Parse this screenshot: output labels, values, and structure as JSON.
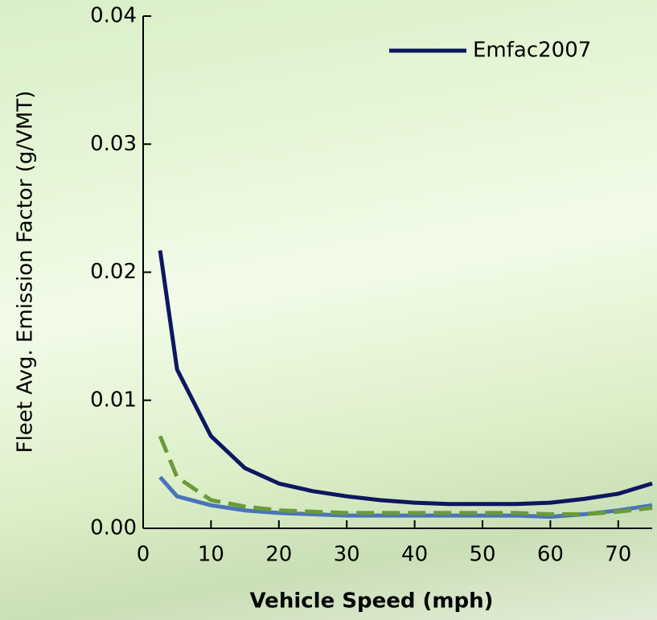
{
  "chart_data": {
    "type": "line",
    "x": [
      2.5,
      5,
      10,
      15,
      20,
      25,
      30,
      35,
      40,
      45,
      50,
      55,
      60,
      65,
      70,
      75
    ],
    "series": [
      {
        "name": "Emfac2007",
        "color": "#0d1760",
        "dash": false,
        "values": [
          0.0217,
          0.0124,
          0.0072,
          0.0047,
          0.0035,
          0.0029,
          0.0025,
          0.0022,
          0.002,
          0.0019,
          0.0019,
          0.0019,
          0.002,
          0.0023,
          0.0027,
          0.0035
        ]
      },
      {
        "color": "#4a74b8",
        "dash": false,
        "values": [
          0.004,
          0.0025,
          0.0018,
          0.0014,
          0.0012,
          0.0011,
          0.001,
          0.001,
          0.001,
          0.001,
          0.001,
          0.001,
          0.0009,
          0.0011,
          0.0014,
          0.0018
        ]
      },
      {
        "color": "#6a9a3a",
        "dash": true,
        "values": [
          0.0072,
          0.004,
          0.0022,
          0.0017,
          0.0014,
          0.0013,
          0.0012,
          0.0012,
          0.0012,
          0.0012,
          0.0012,
          0.0012,
          0.0011,
          0.0011,
          0.0013,
          0.0016
        ]
      }
    ],
    "xlim": [
      0,
      75
    ],
    "ylim": [
      0,
      0.04
    ],
    "xticks": [
      0,
      10,
      20,
      30,
      40,
      50,
      60,
      70
    ],
    "yticks": [
      {
        "value": 0,
        "label": "0.00"
      },
      0.01,
      0.02,
      0.03,
      0.04
    ],
    "xlabel": "Vehicle Speed (mph)",
    "ylabel": "Fleet Avg. Emission Factor (g/VMT)",
    "legend": "upper right"
  }
}
